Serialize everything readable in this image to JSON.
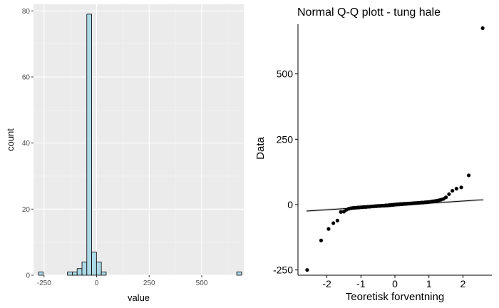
{
  "chart_data": [
    {
      "type": "bar",
      "subtype": "histogram",
      "title": "",
      "xlabel": "value",
      "ylabel": "count",
      "xlim": [
        -300,
        700
      ],
      "ylim": [
        0,
        82
      ],
      "x_ticks": [
        -250,
        0,
        250,
        500
      ],
      "y_ticks": [
        0,
        20,
        40,
        60,
        80
      ],
      "grid": true,
      "legend": "none",
      "bin_width": 23,
      "bins": [
        {
          "center": -265,
          "count": 1
        },
        {
          "center": -242,
          "count": 0
        },
        {
          "center": -219,
          "count": 0
        },
        {
          "center": -196,
          "count": 0
        },
        {
          "center": -173,
          "count": 0
        },
        {
          "center": -150,
          "count": 0
        },
        {
          "center": -127,
          "count": 1
        },
        {
          "center": -104,
          "count": 1
        },
        {
          "center": -81,
          "count": 2
        },
        {
          "center": -58,
          "count": 4
        },
        {
          "center": -35,
          "count": 79
        },
        {
          "center": -12,
          "count": 7
        },
        {
          "center": 11,
          "count": 4
        },
        {
          "center": 34,
          "count": 1
        },
        {
          "center": 57,
          "count": 0
        },
        {
          "center": 80,
          "count": 0
        },
        {
          "center": 103,
          "count": 0
        },
        {
          "center": 126,
          "count": 0
        },
        {
          "center": 149,
          "count": 0
        },
        {
          "center": 172,
          "count": 0
        },
        {
          "center": 195,
          "count": 0
        },
        {
          "center": 218,
          "count": 0
        },
        {
          "center": 241,
          "count": 0
        },
        {
          "center": 264,
          "count": 0
        },
        {
          "center": 287,
          "count": 0
        },
        {
          "center": 310,
          "count": 0
        },
        {
          "center": 333,
          "count": 0
        },
        {
          "center": 356,
          "count": 0
        },
        {
          "center": 379,
          "count": 0
        },
        {
          "center": 402,
          "count": 0
        },
        {
          "center": 425,
          "count": 0
        },
        {
          "center": 448,
          "count": 0
        },
        {
          "center": 471,
          "count": 0
        },
        {
          "center": 494,
          "count": 0
        },
        {
          "center": 517,
          "count": 0
        },
        {
          "center": 540,
          "count": 0
        },
        {
          "center": 563,
          "count": 0
        },
        {
          "center": 586,
          "count": 0
        },
        {
          "center": 609,
          "count": 0
        },
        {
          "center": 632,
          "count": 0
        },
        {
          "center": 655,
          "count": 0
        },
        {
          "center": 678,
          "count": 1
        }
      ],
      "colors": {
        "fill": "#add8e6",
        "outline": "#000000",
        "panel": "#ebebeb",
        "grid": "#ffffff"
      }
    },
    {
      "type": "scatter",
      "subtype": "qq",
      "title": "Normal Q-Q plott - tung hale",
      "xlabel": "Teoretisk forventning",
      "ylabel": "Data",
      "xlim": [
        -2.85,
        2.85
      ],
      "ylim": [
        -270,
        690
      ],
      "x_ticks": [
        -2,
        -1,
        0,
        1,
        2
      ],
      "y_ticks": [
        -250,
        0,
        250,
        500
      ],
      "grid": false,
      "legend": "none",
      "reference_line": {
        "intercept": -3,
        "slope": 8.3
      },
      "points": [
        [
          -2.58,
          -250
        ],
        [
          -2.17,
          -137
        ],
        [
          -1.95,
          -93
        ],
        [
          -1.81,
          -71
        ],
        [
          -1.69,
          -61
        ],
        [
          -1.59,
          -28
        ],
        [
          -1.5,
          -27
        ],
        [
          -1.43,
          -20
        ],
        [
          -1.36,
          -16
        ],
        [
          -1.3,
          -14
        ],
        [
          -1.24,
          -13
        ],
        [
          -1.19,
          -12
        ],
        [
          -1.14,
          -12
        ],
        [
          -1.09,
          -11
        ],
        [
          -1.05,
          -11
        ],
        [
          -1.0,
          -10
        ],
        [
          -0.96,
          -10
        ],
        [
          -0.92,
          -9
        ],
        [
          -0.88,
          -9
        ],
        [
          -0.84,
          -9
        ],
        [
          -0.8,
          -8
        ],
        [
          -0.77,
          -8
        ],
        [
          -0.73,
          -8
        ],
        [
          -0.7,
          -7
        ],
        [
          -0.67,
          -7
        ],
        [
          -0.64,
          -7
        ],
        [
          -0.6,
          -6
        ],
        [
          -0.57,
          -6
        ],
        [
          -0.54,
          -6
        ],
        [
          -0.51,
          -5
        ],
        [
          -0.48,
          -5
        ],
        [
          -0.45,
          -5
        ],
        [
          -0.42,
          -5
        ],
        [
          -0.4,
          -4
        ],
        [
          -0.37,
          -4
        ],
        [
          -0.34,
          -4
        ],
        [
          -0.31,
          -4
        ],
        [
          -0.28,
          -3
        ],
        [
          -0.26,
          -3
        ],
        [
          -0.23,
          -3
        ],
        [
          -0.2,
          -3
        ],
        [
          -0.18,
          -2
        ],
        [
          -0.15,
          -2
        ],
        [
          -0.13,
          -2
        ],
        [
          -0.1,
          -1
        ],
        [
          -0.08,
          -1
        ],
        [
          -0.05,
          -1
        ],
        [
          -0.03,
          0
        ],
        [
          0.0,
          0
        ],
        [
          0.03,
          0
        ],
        [
          0.05,
          1
        ],
        [
          0.08,
          1
        ],
        [
          0.1,
          1
        ],
        [
          0.13,
          1
        ],
        [
          0.15,
          2
        ],
        [
          0.18,
          2
        ],
        [
          0.2,
          2
        ],
        [
          0.23,
          2
        ],
        [
          0.26,
          3
        ],
        [
          0.28,
          3
        ],
        [
          0.31,
          3
        ],
        [
          0.34,
          3
        ],
        [
          0.37,
          4
        ],
        [
          0.4,
          4
        ],
        [
          0.42,
          4
        ],
        [
          0.45,
          4
        ],
        [
          0.48,
          5
        ],
        [
          0.51,
          5
        ],
        [
          0.54,
          5
        ],
        [
          0.57,
          6
        ],
        [
          0.6,
          6
        ],
        [
          0.64,
          6
        ],
        [
          0.67,
          7
        ],
        [
          0.7,
          7
        ],
        [
          0.73,
          7
        ],
        [
          0.77,
          8
        ],
        [
          0.8,
          8
        ],
        [
          0.84,
          8
        ],
        [
          0.88,
          9
        ],
        [
          0.92,
          9
        ],
        [
          0.96,
          10
        ],
        [
          1.0,
          10
        ],
        [
          1.05,
          11
        ],
        [
          1.09,
          12
        ],
        [
          1.14,
          13
        ],
        [
          1.19,
          14
        ],
        [
          1.24,
          15
        ],
        [
          1.3,
          17
        ],
        [
          1.36,
          19
        ],
        [
          1.43,
          22
        ],
        [
          1.5,
          28
        ],
        [
          1.59,
          40
        ],
        [
          1.69,
          53
        ],
        [
          1.81,
          61
        ],
        [
          1.95,
          66
        ],
        [
          2.17,
          112
        ],
        [
          2.58,
          675
        ]
      ],
      "colors": {
        "point": "#000000",
        "line": "#000000",
        "band": "#999999"
      }
    }
  ]
}
